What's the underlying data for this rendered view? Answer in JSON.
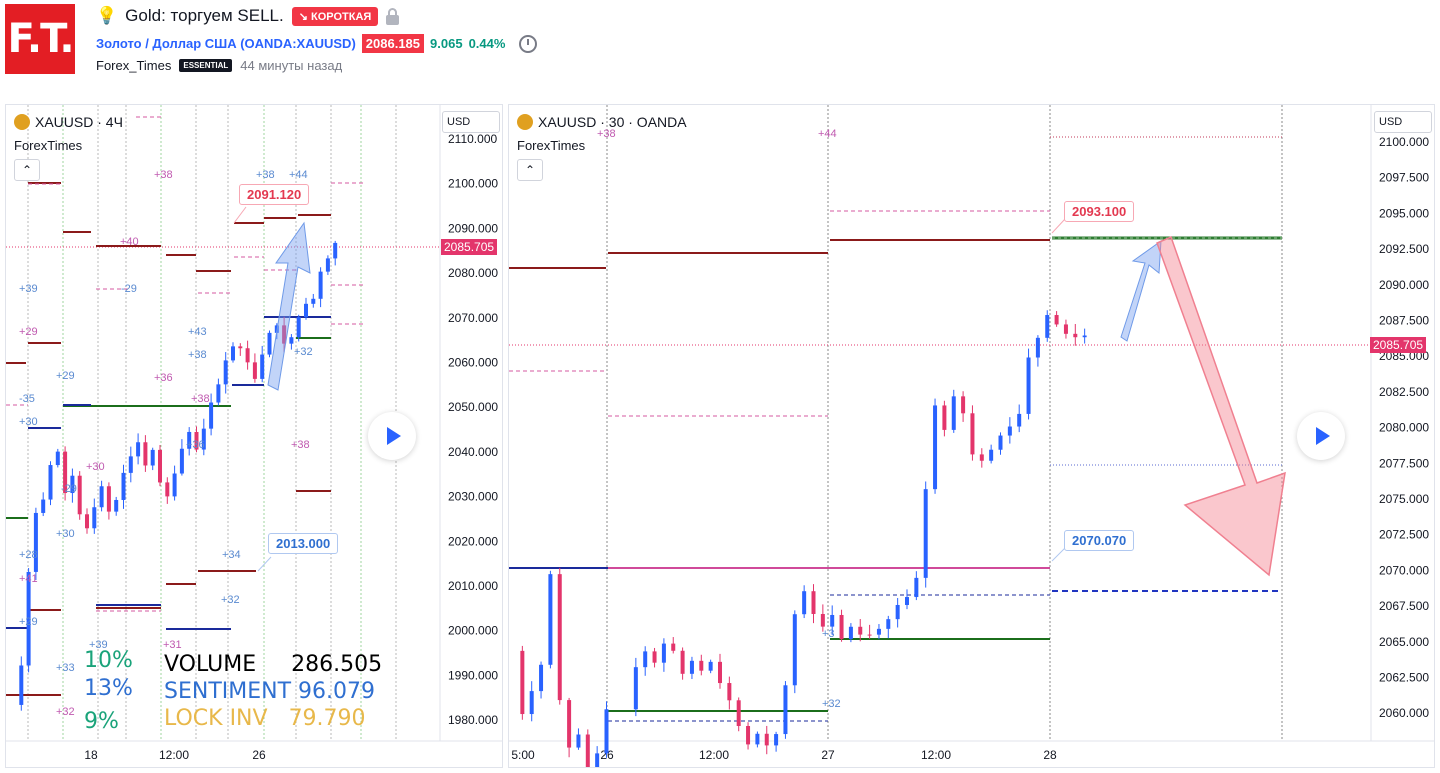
{
  "header": {
    "logo_text": "F.T.",
    "title": "Gold: торгуем SELL.",
    "position_badge": "↘ КОРОТКАЯ",
    "symbol_link": "Золото / Доллар США (OANDA:XAUUSD)",
    "price": "2086.185",
    "change": "9.065",
    "change_pct": "0.44%",
    "author": "Forex_Times",
    "author_badge": "ESSENTIAL",
    "posted_ago": "44 минуты назад"
  },
  "left_chart": {
    "symbol": "XAUUSD · 4Ч",
    "indicator_name": "ForexTimes",
    "currency": "USD",
    "current_price": "2085.705",
    "y_ticks": [
      "2110.000",
      "2100.000",
      "2090.000",
      "2080.000",
      "2070.000",
      "2060.000",
      "2050.000",
      "2040.000",
      "2030.000",
      "2020.000",
      "2010.000",
      "2000.000",
      "1990.000",
      "1980.000"
    ],
    "x_ticks": [
      "18",
      "12:00",
      "26"
    ],
    "callout_top": "2091.120",
    "callout_bottom": "2013.000",
    "stats": {
      "volume_label": "VOLUME",
      "volume_value": "286.505",
      "sentiment_label": "SENTIMENT",
      "sentiment_value": "96.079",
      "lock_label": "LOCK INV",
      "lock_value": "79.790"
    },
    "percents": [
      "10%",
      "13%",
      "9%"
    ],
    "marker_labels": [
      "+38",
      "+38",
      "+44",
      "+40",
      "+39",
      "-29",
      "+29",
      "+43",
      "+38",
      "+36",
      "-35",
      "+29",
      "+38",
      "+30",
      "+36",
      "+30",
      "-29",
      "+30",
      "+38",
      "+34",
      "+28",
      "+41",
      "+32",
      "+29",
      "+31",
      "+39",
      "+33",
      "+32",
      "+32"
    ]
  },
  "right_chart": {
    "symbol": "XAUUSD · 30 · OANDA",
    "indicator_name": "ForexTimes",
    "currency": "USD",
    "current_price": "2085.705",
    "y_ticks": [
      "2100.000",
      "2097.500",
      "2095.000",
      "2092.500",
      "2090.000",
      "2087.500",
      "2085.000",
      "2082.500",
      "2080.000",
      "2077.500",
      "2075.000",
      "2072.500",
      "2070.000",
      "2067.500",
      "2065.000",
      "2062.500",
      "2060.000"
    ],
    "x_ticks": [
      "5:00",
      "26",
      "12:00",
      "27",
      "12:00",
      "28"
    ],
    "callout_top": "2093.100",
    "callout_bottom": "2070.070",
    "marker_labels": [
      "+38",
      "+44",
      "+3",
      "+32"
    ]
  },
  "colors": {
    "up": "#2962ff",
    "down": "#e3356b",
    "resistance": "#8b1a1a",
    "support": "#1a2a9b",
    "green_level": "#1b6e1b",
    "pink_dash": "#d45aa0"
  },
  "icons": [
    "lightbulb-icon",
    "lock-icon",
    "alarm-clock-icon",
    "gold-coin-icon",
    "chevron-up-icon",
    "play-icon"
  ]
}
